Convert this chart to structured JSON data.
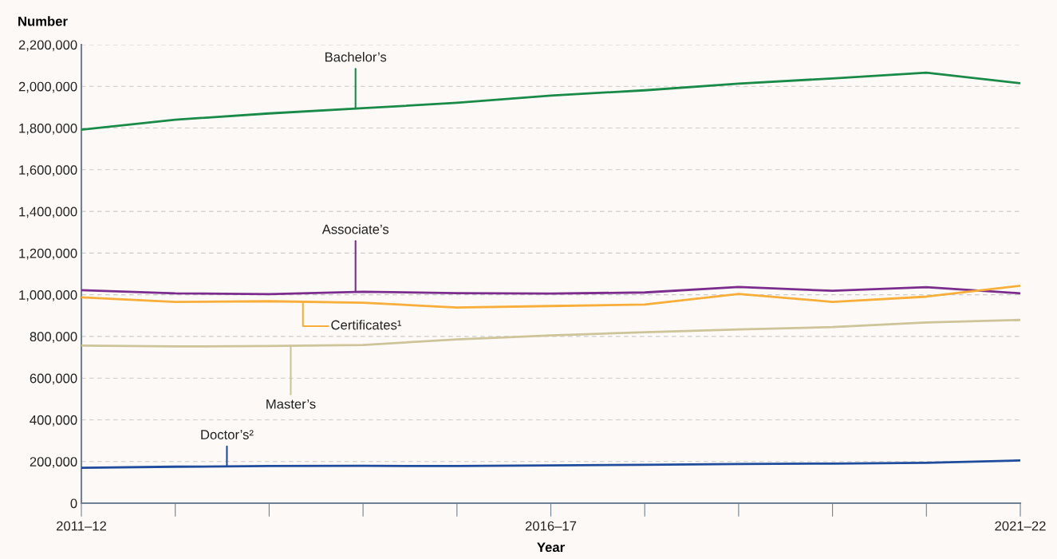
{
  "chart_data": {
    "type": "line",
    "xlabel": "Year",
    "ylabel": "Number",
    "categories": [
      "2011–12",
      null,
      null,
      null,
      null,
      "2016–17",
      null,
      null,
      null,
      null,
      "2021–22"
    ],
    "series": [
      {
        "name": "Bachelor’s",
        "color": "#1a8a48",
        "values": [
          1792000,
          1840000,
          1870000,
          1895000,
          1921000,
          1956000,
          1981000,
          2013000,
          2038000,
          2066000,
          2015000
        ]
      },
      {
        "name": "Associate’s",
        "color": "#7b2d8e",
        "values": [
          1022000,
          1007000,
          1003000,
          1014000,
          1008000,
          1006000,
          1011000,
          1037000,
          1019000,
          1036000,
          1007000
        ]
      },
      {
        "name": "Certificates¹",
        "color": "#f7ae3a",
        "values": [
          988000,
          966000,
          969000,
          962000,
          939000,
          946000,
          953000,
          1004000,
          966000,
          991000,
          1043000
        ]
      },
      {
        "name": "Master’s",
        "color": "#cdc49a",
        "values": [
          756000,
          752000,
          754000,
          759000,
          786000,
          805000,
          820000,
          834000,
          845000,
          867000,
          879000
        ]
      },
      {
        "name": "Doctor’s²",
        "color": "#1f4c9c",
        "values": [
          170000,
          175000,
          178000,
          179000,
          178000,
          181000,
          184000,
          188000,
          190000,
          194000,
          205000
        ]
      }
    ],
    "ylim": [
      0,
      2200000
    ],
    "yticks": [
      0,
      {
        "value": 200000,
        "label": "200,000"
      },
      {
        "value": 400000,
        "label": "400,000"
      },
      {
        "value": 600000,
        "label": "600,000"
      },
      {
        "value": 800000,
        "label": "800,000"
      },
      {
        "value": 1000000,
        "label": "1,000,000"
      },
      {
        "value": 1200000,
        "label": "1,200,000"
      },
      {
        "value": 1400000,
        "label": "1,400,000"
      },
      {
        "value": 1600000,
        "label": "1,600,000"
      },
      {
        "value": 1800000,
        "label": "1,800,000"
      },
      {
        "value": 2000000,
        "label": "2,000,000"
      },
      {
        "value": 2200000,
        "label": "2,200,000"
      }
    ],
    "grid": "y",
    "marker": "none",
    "line_style": "solid"
  }
}
